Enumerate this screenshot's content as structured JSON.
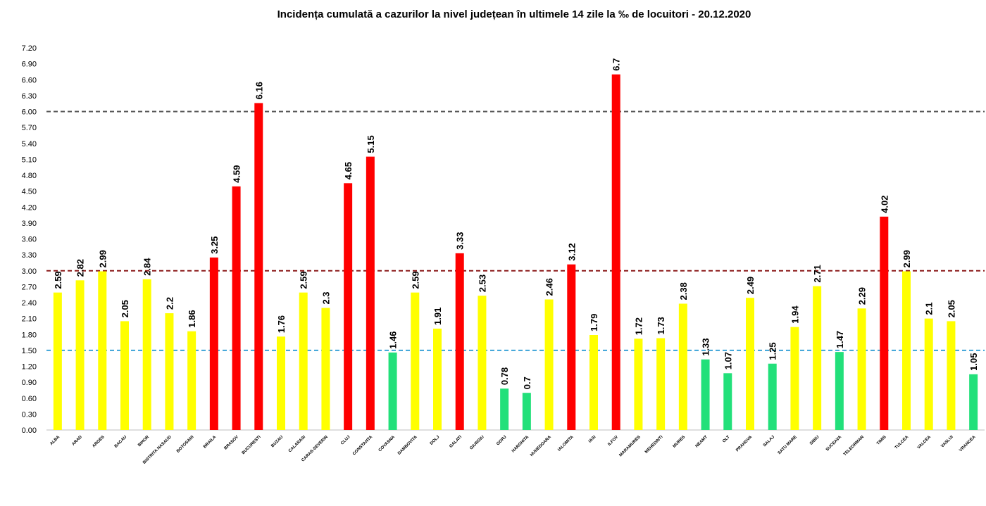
{
  "chart_data": {
    "type": "bar",
    "title": "Incidența cumulată a cazurilor la nivel județean în ultimele 14 zile la ‰ de locuitori - 20.12.2020",
    "xlabel": "",
    "ylabel": "",
    "ylim": [
      0,
      7.2
    ],
    "y_ticks": [
      "0.00",
      "0.30",
      "0.60",
      "0.90",
      "1.20",
      "1.50",
      "1.80",
      "2.10",
      "2.40",
      "2.70",
      "3.00",
      "3.30",
      "3.60",
      "3.90",
      "4.20",
      "4.50",
      "4.80",
      "5.10",
      "5.40",
      "5.70",
      "6.00",
      "6.30",
      "6.60",
      "6.90",
      "7.20"
    ],
    "categories": [
      "ALBA",
      "ARAD",
      "ARGES",
      "BACAU",
      "BIHOR",
      "BISTRITA NASAUD",
      "BOTOSANI",
      "BRAILA",
      "BRASOV",
      "BUCURESTI",
      "BUZAU",
      "CALARASI",
      "CARAS-SEVERIN",
      "CLUJ",
      "CONSTANTA",
      "COVASNA",
      "DAMBOVITA",
      "DOLJ",
      "GALATI",
      "GIURGIU",
      "GORJ",
      "HARGHITA",
      "HUNEDOARA",
      "IALOMITA",
      "IASI",
      "ILFOV",
      "MARAMURES",
      "MEHEDINTI",
      "MURES",
      "NEAMT",
      "OLT",
      "PRAHOVA",
      "SALAJ",
      "SATU MARE",
      "SIBIU",
      "SUCEAVA",
      "TELEORMAN",
      "TIMIS",
      "TULCEA",
      "VALCEA",
      "VASLUI",
      "VRANCEA"
    ],
    "values": [
      2.59,
      2.82,
      2.99,
      2.05,
      2.84,
      2.2,
      1.86,
      3.25,
      4.59,
      6.16,
      1.76,
      2.59,
      2.3,
      4.65,
      5.15,
      1.46,
      2.59,
      1.91,
      3.33,
      2.53,
      0.78,
      0.7,
      2.46,
      3.12,
      1.79,
      6.7,
      1.72,
      1.73,
      2.38,
      1.33,
      1.07,
      2.49,
      1.25,
      1.94,
      2.71,
      1.47,
      2.29,
      4.02,
      2.99,
      2.1,
      2.05,
      1.05
    ],
    "value_labels": [
      "2.59",
      "2.82",
      "2.99",
      "2.05",
      "2.84",
      "2.2",
      "1.86",
      "3.25",
      "4.59",
      "6.16",
      "1.76",
      "2.59",
      "2.3",
      "4.65",
      "5.15",
      "1.46",
      "2.59",
      "1.91",
      "3.33",
      "2.53",
      "0.78",
      "0.7",
      "2.46",
      "3.12",
      "1.79",
      "6.7",
      "1.72",
      "1.73",
      "2.38",
      "1.33",
      "1.07",
      "2.49",
      "1.25",
      "1.94",
      "2.71",
      "1.47",
      "2.29",
      "4.02",
      "2.99",
      "2.1",
      "2.05",
      "1.05"
    ],
    "thresholds": [
      {
        "value": 6.0,
        "color": "#555555"
      },
      {
        "value": 3.0,
        "color": "#8B1A1A"
      },
      {
        "value": 1.5,
        "color": "#3BA3D8"
      }
    ],
    "colors": {
      "red": "#FF0000",
      "yellow": "#FFFF00",
      "green": "#22E07A"
    },
    "grid": false,
    "legend": "none"
  }
}
